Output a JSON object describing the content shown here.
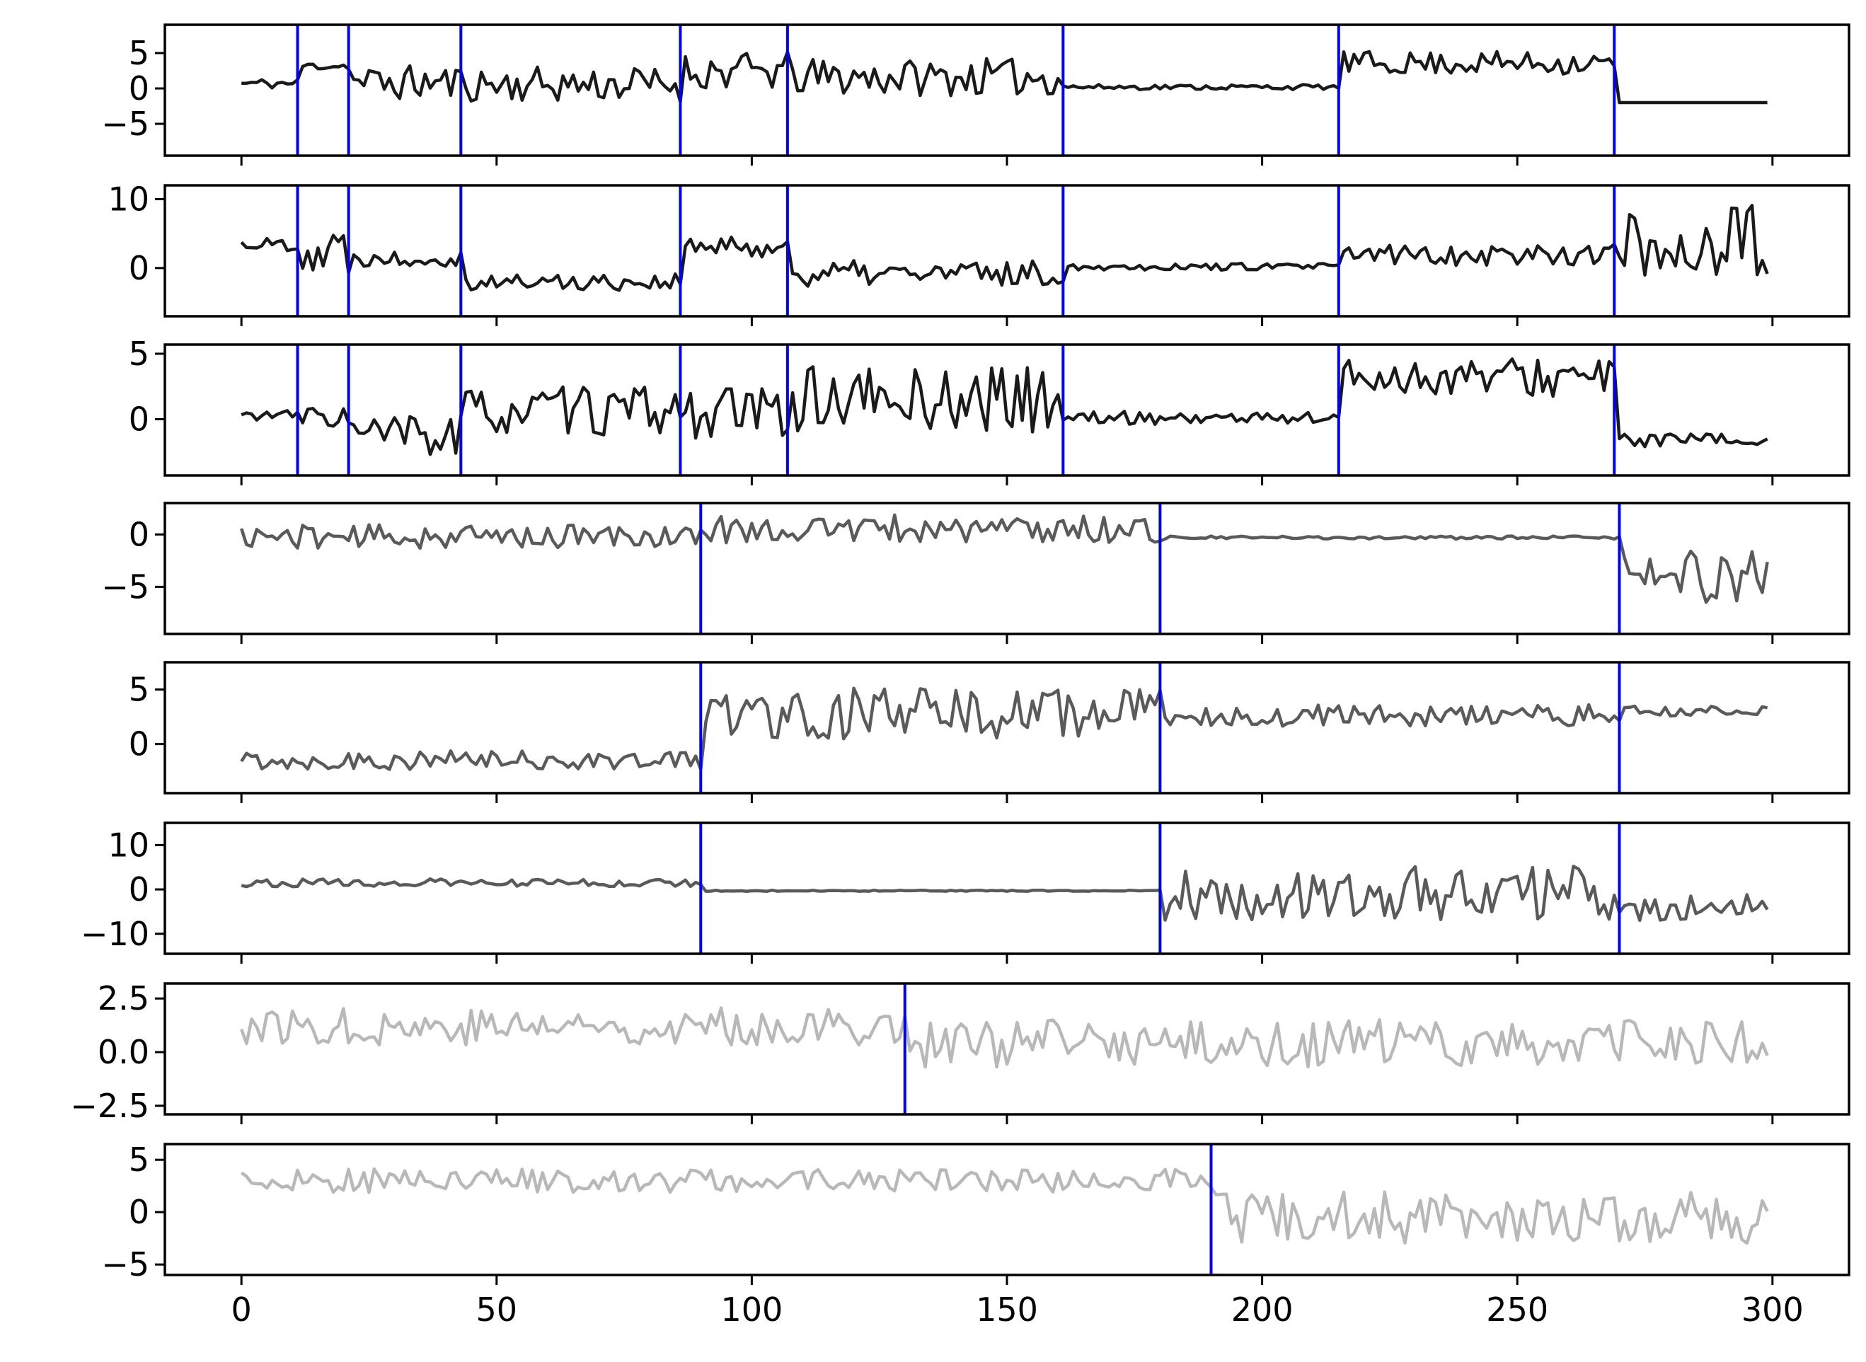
{
  "chart_data": [
    {
      "type": "line",
      "series": [
        {
          "color": "#1a1a1a",
          "shape": {
            "type": "pw",
            "segs": [
              [
                0,
                11,
                0.7,
                0.6
              ],
              [
                11,
                21,
                3.2,
                0.5
              ],
              [
                21,
                43,
                0.8,
                2.0
              ],
              [
                43,
                86,
                0.6,
                2.0
              ],
              [
                86,
                107,
                2.4,
                2.2
              ],
              [
                107,
                161,
                1.6,
                2.1
              ],
              [
                161,
                215,
                0.2,
                0.3
              ],
              [
                215,
                269,
                3.6,
                1.3
              ],
              [
                269,
                299,
                -2.0,
                0
              ]
            ]
          },
          "seed": 11
        }
      ],
      "y_ticks": [
        {
          "value": 5,
          "label": "5"
        },
        {
          "value": 0,
          "label": "0"
        },
        {
          "value": -5,
          "label": "−5"
        }
      ],
      "ylim": [
        -9.5,
        9.0
      ],
      "change_points": [
        11,
        21,
        43,
        86,
        107,
        161,
        215,
        269
      ]
    },
    {
      "type": "line",
      "series": [
        {
          "color": "#1a1a1a",
          "shape": {
            "type": "pw",
            "segs": [
              [
                0,
                11,
                3.5,
                0.8
              ],
              [
                11,
                21,
                2.5,
                3.2
              ],
              [
                21,
                43,
                1.5,
                1.0
              ],
              [
                43,
                86,
                -2.0,
                1.0
              ],
              [
                86,
                107,
                3.0,
                1.2
              ],
              [
                107,
                161,
                -0.8,
                1.5
              ],
              [
                161,
                215,
                0.2,
                0.4
              ],
              [
                215,
                269,
                2.0,
                1.3
              ],
              [
                269,
                299,
                3.5,
                4.8
              ]
            ]
          },
          "seed": 22
        }
      ],
      "y_ticks": [
        {
          "value": 10,
          "label": "10"
        },
        {
          "value": 0,
          "label": "0"
        }
      ],
      "ylim": [
        -7.0,
        12.0
      ],
      "change_points": [
        11,
        21,
        43,
        86,
        107,
        161,
        215,
        269
      ]
    },
    {
      "type": "line",
      "series": [
        {
          "color": "#1a1a1a",
          "shape": {
            "type": "pw",
            "segs": [
              [
                0,
                11,
                0.3,
                0.3
              ],
              [
                11,
                21,
                0.2,
                0.7
              ],
              [
                21,
                43,
                -1.3,
                1.5
              ],
              [
                43,
                86,
                0.6,
                1.5
              ],
              [
                86,
                107,
                0.5,
                1.6
              ],
              [
                107,
                161,
                1.5,
                2.0
              ],
              [
                161,
                215,
                0.1,
                0.4
              ],
              [
                215,
                269,
                3.2,
                1.2
              ],
              [
                269,
                299,
                -1.6,
                0.4
              ]
            ]
          },
          "seed": 33
        }
      ],
      "y_ticks": [
        {
          "value": 5,
          "label": "5"
        },
        {
          "value": 0,
          "label": "0"
        }
      ],
      "ylim": [
        -4.3,
        5.7
      ],
      "change_points": [
        11,
        21,
        43,
        86,
        107,
        161,
        215,
        269
      ]
    },
    {
      "type": "line",
      "series": [
        {
          "color": "#5a5a5a",
          "shape": {
            "type": "pw",
            "segs": [
              [
                0,
                90,
                -0.2,
                0.9
              ],
              [
                90,
                180,
                0.5,
                1.1
              ],
              [
                180,
                270,
                -0.3,
                0.12
              ],
              [
                270,
                299,
                -4.0,
                2.0
              ]
            ]
          },
          "seed": 44
        }
      ],
      "y_ticks": [
        {
          "value": 0,
          "label": "0"
        },
        {
          "value": -5,
          "label": "−5"
        }
      ],
      "ylim": [
        -9.5,
        3.0
      ],
      "change_points": [
        90,
        180,
        270
      ]
    },
    {
      "type": "line",
      "series": [
        {
          "color": "#5a5a5a",
          "shape": {
            "type": "pw",
            "segs": [
              [
                0,
                90,
                -1.5,
                0.7
              ],
              [
                90,
                180,
                2.8,
                1.9
              ],
              [
                180,
                270,
                2.6,
                0.8
              ],
              [
                270,
                299,
                3.0,
                0.4
              ]
            ]
          },
          "seed": 55
        }
      ],
      "y_ticks": [
        {
          "value": 5,
          "label": "5"
        },
        {
          "value": 0,
          "label": "0"
        }
      ],
      "ylim": [
        -4.5,
        7.5
      ],
      "change_points": [
        90,
        180,
        270
      ]
    },
    {
      "type": "line",
      "series": [
        {
          "color": "#5a5a5a",
          "shape": {
            "type": "pw",
            "segs": [
              [
                0,
                90,
                1.5,
                0.7
              ],
              [
                90,
                180,
                -0.3,
                0.1
              ],
              [
                180,
                270,
                -1.0,
                5.0
              ],
              [
                270,
                299,
                -4.0,
                2.5
              ]
            ]
          },
          "seed": 66
        }
      ],
      "y_ticks": [
        {
          "value": 10,
          "label": "10"
        },
        {
          "value": 0,
          "label": "0"
        },
        {
          "value": -10,
          "label": "−10"
        }
      ],
      "ylim": [
        -14.5,
        15.0
      ],
      "change_points": [
        90,
        180,
        270
      ]
    },
    {
      "type": "line",
      "series": [
        {
          "color": "#b8b8b8",
          "shape": {
            "type": "pw",
            "segs": [
              [
                0,
                130,
                1.2,
                0.7
              ],
              [
                130,
                299,
                0.4,
                0.9
              ]
            ]
          },
          "seed": 77
        }
      ],
      "y_ticks": [
        {
          "value": 2.5,
          "label": "2.5"
        },
        {
          "value": 0,
          "label": "0.0"
        },
        {
          "value": -2.5,
          "label": "−2.5"
        }
      ],
      "ylim": [
        -2.9,
        3.2
      ],
      "change_points": [
        130
      ]
    },
    {
      "type": "line",
      "series": [
        {
          "color": "#b8b8b8",
          "shape": {
            "type": "pw",
            "segs": [
              [
                0,
                190,
                3.0,
                0.9
              ],
              [
                190,
                299,
                -0.5,
                2.0
              ]
            ]
          },
          "seed": 88
        }
      ],
      "y_ticks": [
        {
          "value": 5,
          "label": "5"
        },
        {
          "value": 0,
          "label": "0"
        },
        {
          "value": -5,
          "label": "−5"
        }
      ],
      "ylim": [
        -6.0,
        6.5
      ],
      "change_points": [
        190
      ]
    }
  ],
  "x_ticks": [
    0,
    50,
    100,
    150,
    200,
    250,
    300
  ],
  "xlim": [
    -15,
    315
  ],
  "change_point_color": "#0000ff"
}
